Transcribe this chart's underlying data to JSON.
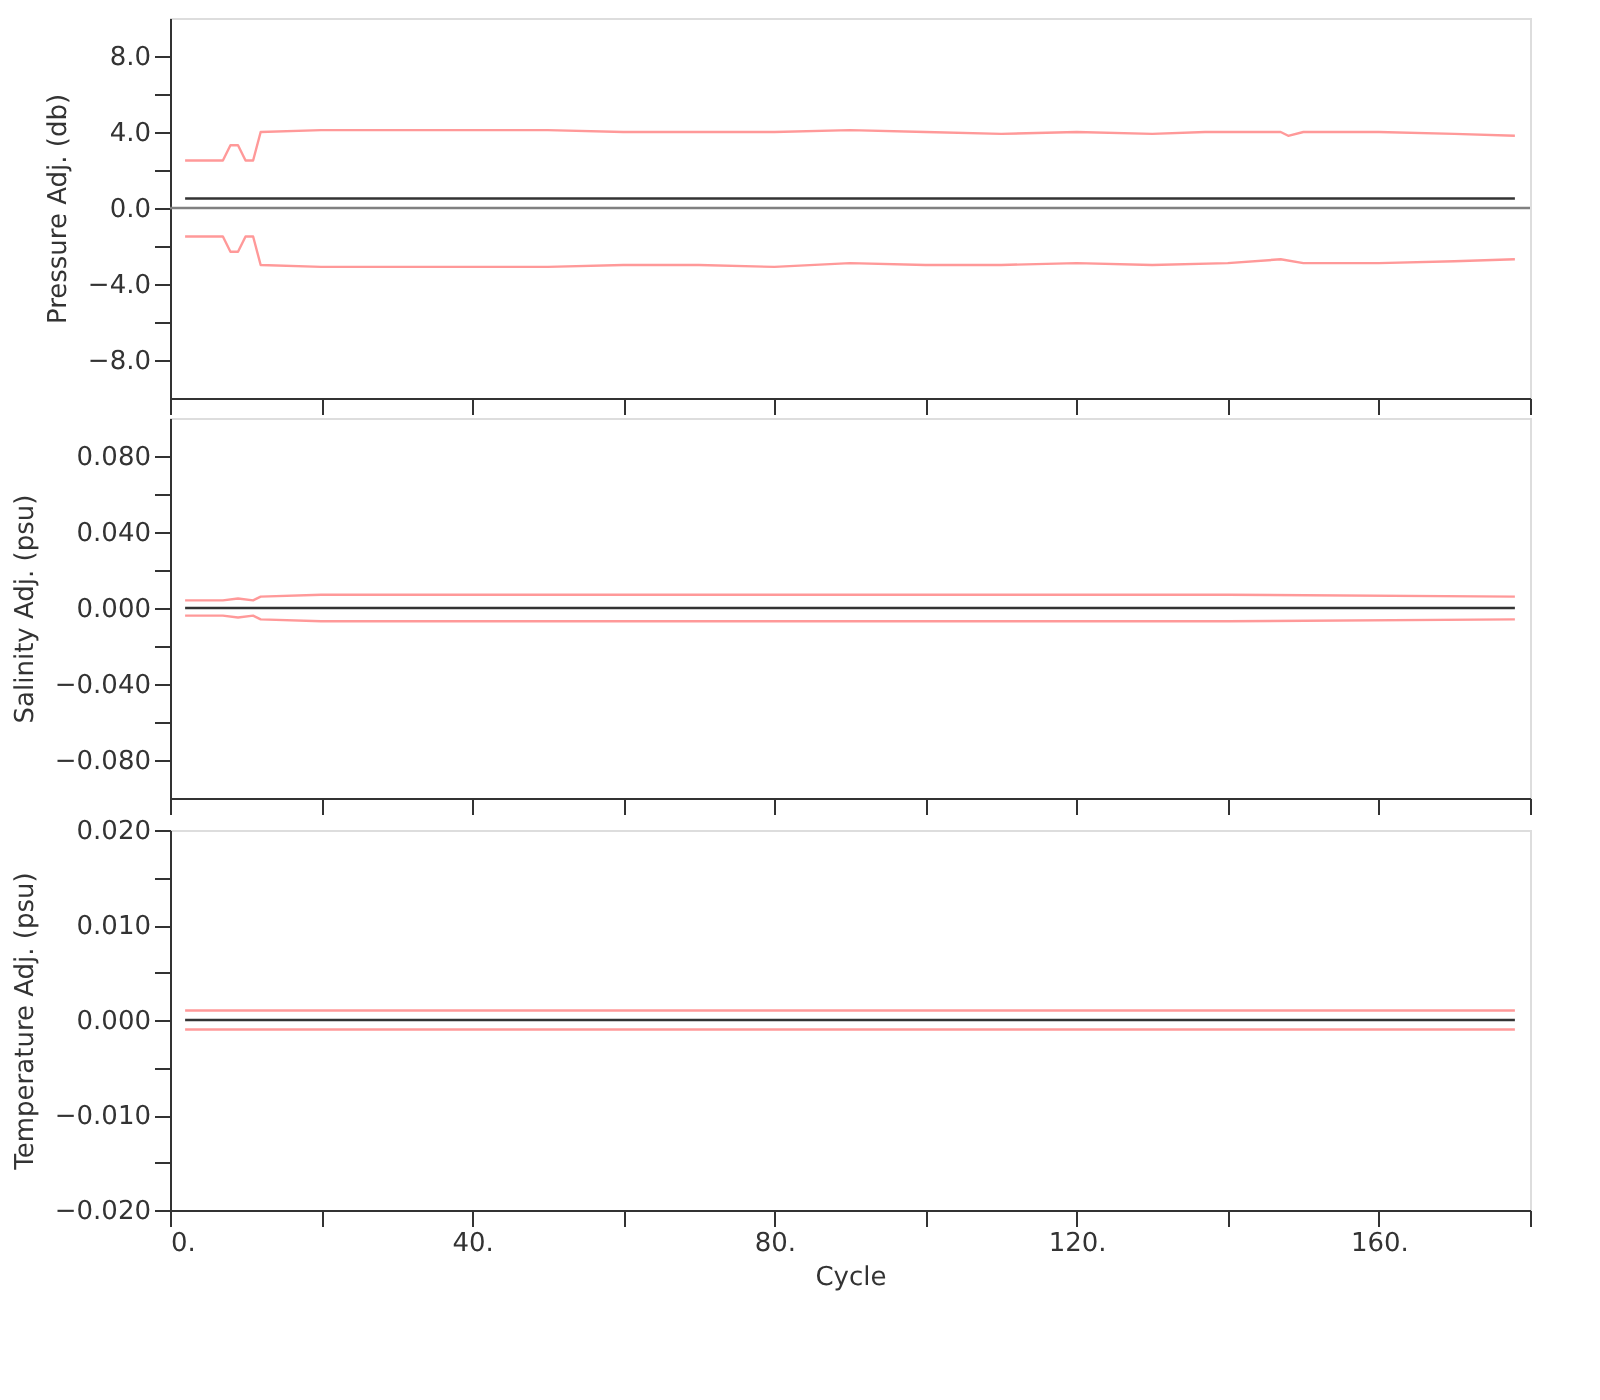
{
  "chart_data": [
    {
      "type": "line",
      "ylabel": "Pressure Adj. (db)",
      "xlim": [
        0,
        180
      ],
      "xticks": [
        {
          "value": 0,
          "label": null
        },
        {
          "value": 20,
          "label": null
        },
        {
          "value": 40,
          "label": null
        },
        {
          "value": 60,
          "label": null
        },
        {
          "value": 80,
          "label": null
        },
        {
          "value": 100,
          "label": null
        },
        {
          "value": 120,
          "label": null
        },
        {
          "value": 140,
          "label": null
        },
        {
          "value": 160,
          "label": null
        },
        {
          "value": 180,
          "label": null
        }
      ],
      "ylim": [
        -10,
        10
      ],
      "yticks": [
        {
          "value": 8,
          "label": "8.0"
        },
        {
          "value": 6,
          "label": null
        },
        {
          "value": 4,
          "label": "4.0"
        },
        {
          "value": 2,
          "label": null
        },
        {
          "value": 0,
          "label": "0.0"
        },
        {
          "value": -2,
          "label": null
        },
        {
          "value": -4,
          "label": "−4.0"
        },
        {
          "value": -6,
          "label": null
        },
        {
          "value": -8,
          "label": "−8.0"
        }
      ],
      "tick_labels": "y",
      "ref_lines": [
        {
          "axis": "y",
          "value": 0,
          "color": "#808080"
        }
      ],
      "series": [
        {
          "color": "#333333",
          "x": [
            2,
            178
          ],
          "values": [
            0.5,
            0.5
          ]
        },
        {
          "color": "#ff9999",
          "x": [
            2,
            7,
            8,
            9,
            10,
            11,
            12,
            20,
            30,
            40,
            50,
            60,
            70,
            80,
            90,
            100,
            110,
            120,
            130,
            137,
            140,
            147,
            148,
            150,
            160,
            170,
            178
          ],
          "values": [
            2.5,
            2.5,
            3.3,
            3.3,
            2.5,
            2.5,
            4.0,
            4.1,
            4.1,
            4.1,
            4.1,
            4.0,
            4.0,
            4.0,
            4.1,
            4.0,
            3.9,
            4.0,
            3.9,
            4.0,
            4.0,
            4.0,
            3.8,
            4.0,
            4.0,
            3.9,
            3.8
          ]
        },
        {
          "color": "#ff9999",
          "x": [
            2,
            7,
            8,
            9,
            10,
            11,
            12,
            20,
            30,
            40,
            50,
            60,
            70,
            80,
            90,
            100,
            110,
            120,
            130,
            140,
            147,
            150,
            160,
            170,
            178
          ],
          "values": [
            -1.5,
            -1.5,
            -2.3,
            -2.3,
            -1.5,
            -1.5,
            -3.0,
            -3.1,
            -3.1,
            -3.1,
            -3.1,
            -3.0,
            -3.0,
            -3.1,
            -2.9,
            -3.0,
            -3.0,
            -2.9,
            -3.0,
            -2.9,
            -2.7,
            -2.9,
            -2.9,
            -2.8,
            -2.7
          ]
        }
      ]
    },
    {
      "type": "line",
      "ylabel": "Salinity Adj. (psu)",
      "xlim": [
        0,
        180
      ],
      "xticks": [
        {
          "value": 0,
          "label": null
        },
        {
          "value": 20,
          "label": null
        },
        {
          "value": 40,
          "label": null
        },
        {
          "value": 60,
          "label": null
        },
        {
          "value": 80,
          "label": null
        },
        {
          "value": 100,
          "label": null
        },
        {
          "value": 120,
          "label": null
        },
        {
          "value": 140,
          "label": null
        },
        {
          "value": 160,
          "label": null
        },
        {
          "value": 180,
          "label": null
        }
      ],
      "ylim": [
        -0.1,
        0.1
      ],
      "yticks": [
        {
          "value": 0.08,
          "label": "0.080"
        },
        {
          "value": 0.06,
          "label": null
        },
        {
          "value": 0.04,
          "label": "0.040"
        },
        {
          "value": 0.02,
          "label": null
        },
        {
          "value": 0,
          "label": "0.000"
        },
        {
          "value": -0.02,
          "label": null
        },
        {
          "value": -0.04,
          "label": "−0.040"
        },
        {
          "value": -0.06,
          "label": null
        },
        {
          "value": -0.08,
          "label": "−0.080"
        }
      ],
      "tick_labels": "y",
      "series": [
        {
          "color": "#333333",
          "x": [
            2,
            178
          ],
          "values": [
            0,
            0
          ]
        },
        {
          "color": "#ff9999",
          "x": [
            2,
            7,
            9,
            11,
            12,
            20,
            60,
            100,
            140,
            178
          ],
          "values": [
            0.004,
            0.004,
            0.005,
            0.004,
            0.006,
            0.007,
            0.007,
            0.007,
            0.007,
            0.006
          ]
        },
        {
          "color": "#ff9999",
          "x": [
            2,
            7,
            9,
            11,
            12,
            20,
            60,
            100,
            140,
            178
          ],
          "values": [
            -0.004,
            -0.004,
            -0.005,
            -0.004,
            -0.006,
            -0.007,
            -0.007,
            -0.007,
            -0.007,
            -0.006
          ]
        }
      ]
    },
    {
      "type": "line",
      "ylabel": "Temperature Adj. (psu)",
      "xlabel": "Cycle",
      "xlim": [
        0,
        180
      ],
      "xticks": [
        {
          "value": 0,
          "label": "0."
        },
        {
          "value": 20,
          "label": null
        },
        {
          "value": 40,
          "label": "40."
        },
        {
          "value": 60,
          "label": null
        },
        {
          "value": 80,
          "label": "80."
        },
        {
          "value": 100,
          "label": null
        },
        {
          "value": 120,
          "label": "120."
        },
        {
          "value": 140,
          "label": null
        },
        {
          "value": 160,
          "label": "160."
        },
        {
          "value": 180,
          "label": null
        }
      ],
      "ylim": [
        -0.02,
        0.02
      ],
      "yticks": [
        {
          "value": 0.02,
          "label": "0.020"
        },
        {
          "value": 0.015,
          "label": null
        },
        {
          "value": 0.01,
          "label": "0.010"
        },
        {
          "value": 0.005,
          "label": null
        },
        {
          "value": 0,
          "label": "0.000"
        },
        {
          "value": -0.005,
          "label": null
        },
        {
          "value": -0.01,
          "label": "−0.010"
        },
        {
          "value": -0.015,
          "label": null
        },
        {
          "value": -0.02,
          "label": "−0.020"
        }
      ],
      "series": [
        {
          "color": "#333333",
          "x": [
            2,
            178
          ],
          "values": [
            0,
            0
          ]
        },
        {
          "color": "#ff9999",
          "x": [
            2,
            178
          ],
          "values": [
            0.001,
            0.001
          ]
        },
        {
          "color": "#ff9999",
          "x": [
            2,
            178
          ],
          "values": [
            -0.001,
            -0.001
          ]
        }
      ]
    }
  ]
}
